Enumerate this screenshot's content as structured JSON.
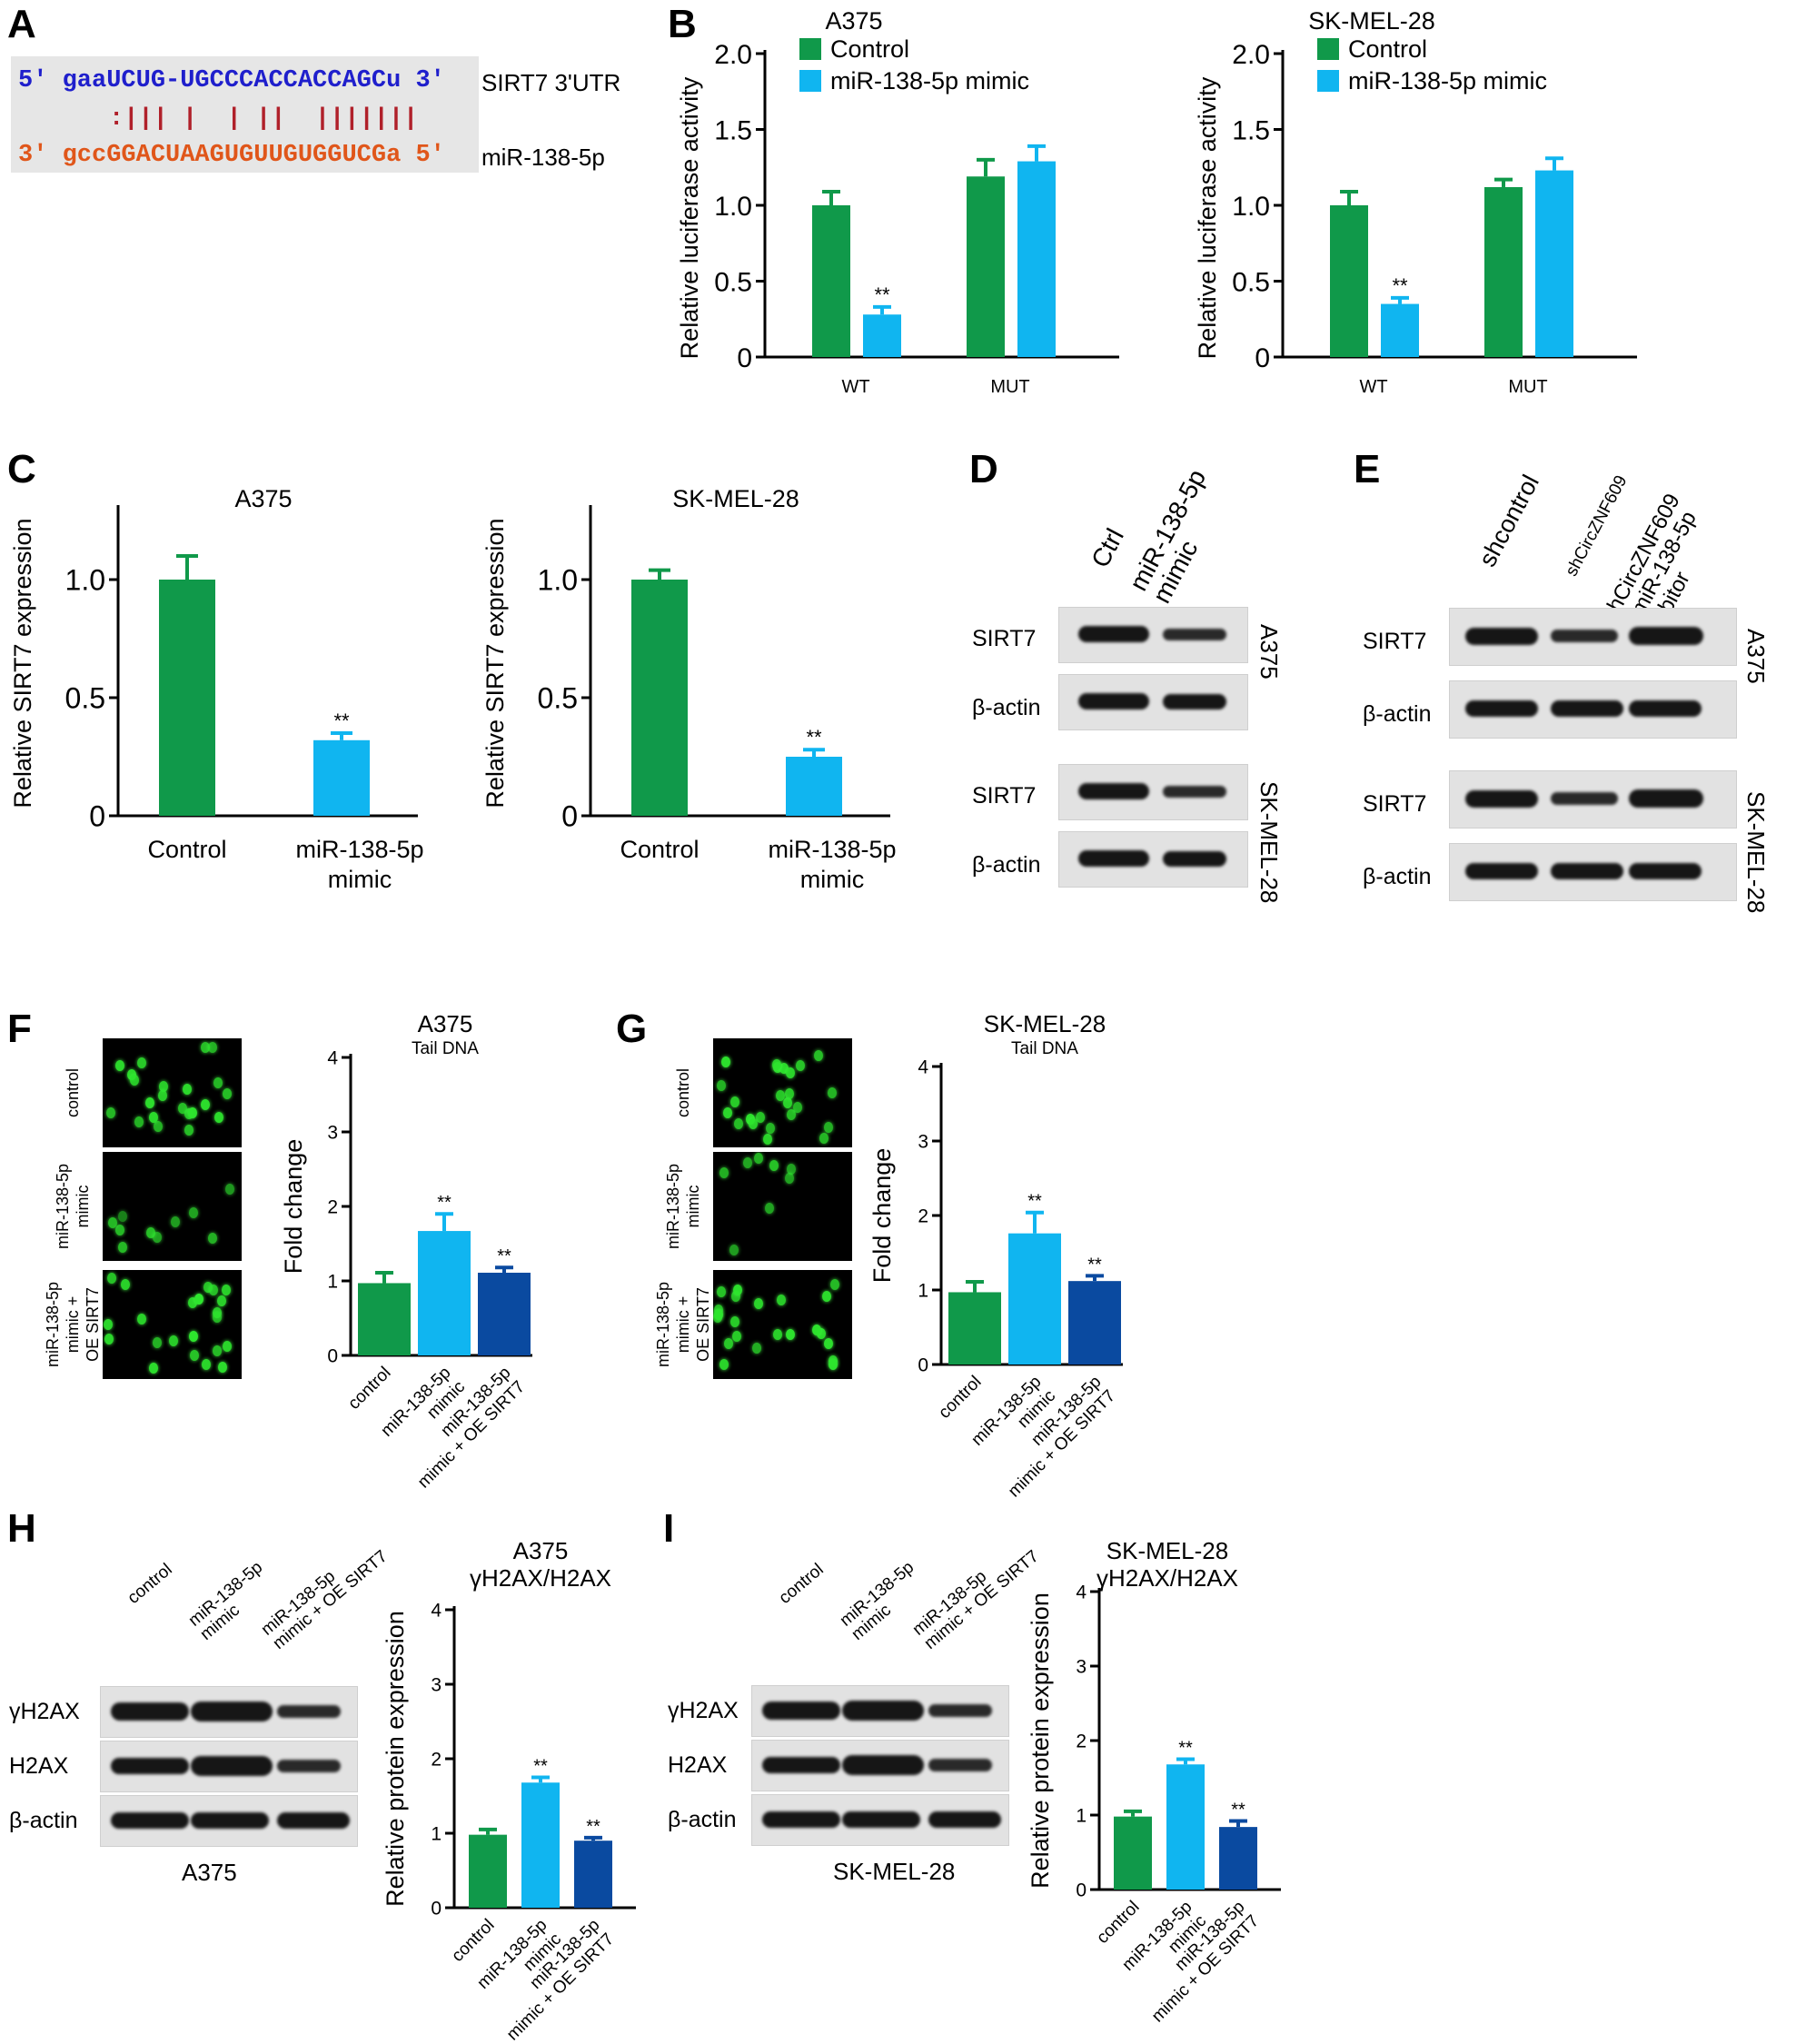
{
  "panels": {
    "A": "A",
    "B": "B",
    "C": "C",
    "D": "D",
    "E": "E",
    "F": "F",
    "G": "G",
    "H": "H",
    "I": "I"
  },
  "panelA": {
    "top_strand": "5' gaaUCUG-UGCCCACCACCAGCu 3'",
    "pairing": ":||| |  | ||  |||||||",
    "bottom_strand": "3' gccGGACUAAGUGUUGUGGUCGa 5'",
    "top_label": "SIRT7 3'UTR",
    "bottom_label": "miR-138-5p",
    "colors": {
      "top": "#1f1fcc",
      "bottom": "#e0561a",
      "pairing": "#b0202a"
    }
  },
  "colors": {
    "green": "#10994a",
    "cyan": "#10b5f0",
    "navy": "#0a4aa0"
  },
  "chart_data": [
    {
      "id": "B1",
      "type": "bar",
      "title": "A375",
      "ylabel": "Relative luciferase activity",
      "categories": [
        "WT",
        "MUT"
      ],
      "ylim": [
        0,
        2.0
      ],
      "yticks": [
        "0",
        "0.5",
        "1.0",
        "1.5",
        "2.0"
      ],
      "legend": [
        "Control",
        "miR-138-5p mimic"
      ],
      "series": [
        {
          "name": "Control",
          "values": [
            1.0,
            1.19
          ],
          "err": [
            0.09,
            0.11
          ]
        },
        {
          "name": "miR-138-5p mimic",
          "values": [
            0.28,
            1.29
          ],
          "err": [
            0.05,
            0.1
          ]
        }
      ],
      "annotations": [
        "**",
        ""
      ]
    },
    {
      "id": "B2",
      "type": "bar",
      "title": "SK-MEL-28",
      "ylabel": "Relative luciferase activity",
      "categories": [
        "WT",
        "MUT"
      ],
      "ylim": [
        0,
        2.0
      ],
      "yticks": [
        "0",
        "0.5",
        "1.0",
        "1.5",
        "2.0"
      ],
      "legend": [
        "Control",
        "miR-138-5p mimic"
      ],
      "series": [
        {
          "name": "Control",
          "values": [
            1.0,
            1.12
          ],
          "err": [
            0.09,
            0.05
          ]
        },
        {
          "name": "miR-138-5p mimic",
          "values": [
            0.35,
            1.23
          ],
          "err": [
            0.04,
            0.08
          ]
        }
      ],
      "annotations": [
        "**",
        ""
      ]
    },
    {
      "id": "C1",
      "type": "bar",
      "title": "A375",
      "ylabel": "Relative SIRT7 expression",
      "categories": [
        "Control",
        "miR-138-5p\nmimic"
      ],
      "ylim": [
        0,
        1.3
      ],
      "yticks": [
        "0",
        "0.5",
        "1.0"
      ],
      "values": [
        1.0,
        0.32
      ],
      "err": [
        0.1,
        0.03
      ],
      "annotations": [
        "",
        "**"
      ]
    },
    {
      "id": "C2",
      "type": "bar",
      "title": "SK-MEL-28",
      "ylabel": "Relative SIRT7 expression",
      "categories": [
        "Control",
        "miR-138-5p\nmimic"
      ],
      "ylim": [
        0,
        1.3
      ],
      "yticks": [
        "0",
        "0.5",
        "1.0"
      ],
      "values": [
        1.0,
        0.25
      ],
      "err": [
        0.04,
        0.03
      ],
      "annotations": [
        "",
        "**"
      ]
    },
    {
      "id": "F",
      "type": "bar",
      "title": "A375",
      "subtitle": "Tail DNA",
      "ylabel": "Fold change",
      "categories": [
        "control",
        "miR-138-5p\nmimic",
        "miR-138-5p\nmimic + OE SIRT7"
      ],
      "ylim": [
        0,
        4
      ],
      "yticks": [
        "0",
        "1",
        "2",
        "3",
        "4"
      ],
      "values": [
        0.97,
        1.67,
        1.11
      ],
      "err": [
        0.14,
        0.23,
        0.07
      ],
      "annotations": [
        "",
        "**",
        "**"
      ]
    },
    {
      "id": "G",
      "type": "bar",
      "title": "SK-MEL-28",
      "subtitle": "Tail DNA",
      "ylabel": "Fold change",
      "categories": [
        "control",
        "miR-138-5p\nmimic",
        "miR-138-5p\nmimic + OE SIRT7"
      ],
      "ylim": [
        0,
        4
      ],
      "yticks": [
        "0",
        "1",
        "2",
        "3",
        "4"
      ],
      "values": [
        0.97,
        1.76,
        1.12
      ],
      "err": [
        0.14,
        0.28,
        0.07
      ],
      "annotations": [
        "",
        "**",
        "**"
      ]
    },
    {
      "id": "H",
      "type": "bar",
      "title": "A375\nγH2AX/H2AX",
      "ylabel": "Relative protein expression",
      "categories": [
        "control",
        "miR-138-5p\nmimic",
        "miR-138-5p\nmimic + OE SIRT7"
      ],
      "ylim": [
        0,
        4
      ],
      "yticks": [
        "0",
        "1",
        "2",
        "3",
        "4"
      ],
      "values": [
        0.98,
        1.68,
        0.9
      ],
      "err": [
        0.07,
        0.07,
        0.04
      ],
      "annotations": [
        "",
        "**",
        "**"
      ]
    },
    {
      "id": "I",
      "type": "bar",
      "title": "SK-MEL-28\nγH2AX/H2AX",
      "ylabel": "Relative protein expression",
      "categories": [
        "control",
        "miR-138-5p\nmimic",
        "miR-138-5p\nmimic + OE SIRT7"
      ],
      "ylim": [
        0,
        4
      ],
      "yticks": [
        "0",
        "1",
        "2",
        "3",
        "4"
      ],
      "values": [
        0.98,
        1.68,
        0.84
      ],
      "err": [
        0.07,
        0.07,
        0.08
      ],
      "annotations": [
        "",
        "**",
        "**"
      ]
    }
  ],
  "blotD": {
    "lanes": [
      "Ctrl",
      "miR-138-5p\nmimic"
    ],
    "rows": [
      "SIRT7",
      "β-actin"
    ],
    "cells": [
      "A375",
      "SK-MEL-28"
    ]
  },
  "blotE": {
    "lanes": [
      "shcontrol",
      "shCircZNF609",
      "shCircZNF609\n+ miR-138-5p\ninhibitor"
    ],
    "rows": [
      "SIRT7",
      "β-actin"
    ],
    "cells": [
      "A375",
      "SK-MEL-28"
    ]
  },
  "blotH": {
    "lanes": [
      "control",
      "miR-138-5p\nmimic",
      "miR-138-5p\nmimic + OE SIRT7"
    ],
    "rows": [
      "γH2AX",
      "H2AX",
      "β-actin"
    ],
    "cell": "A375"
  },
  "blotI": {
    "lanes": [
      "control",
      "miR-138-5p\nmimic",
      "miR-138-5p\nmimic + OE SIRT7"
    ],
    "rows": [
      "γH2AX",
      "H2AX",
      "β-actin"
    ],
    "cell": "SK-MEL-28"
  },
  "cometF": {
    "rows": [
      "control",
      "miR-138-5p\nmimic",
      "miR-138-5p\nmimic +\nOE SIRT7"
    ]
  },
  "cometG": {
    "rows": [
      "control",
      "miR-138-5p\nmimic",
      "miR-138-5p\nmimic +\nOE SIRT7"
    ]
  }
}
